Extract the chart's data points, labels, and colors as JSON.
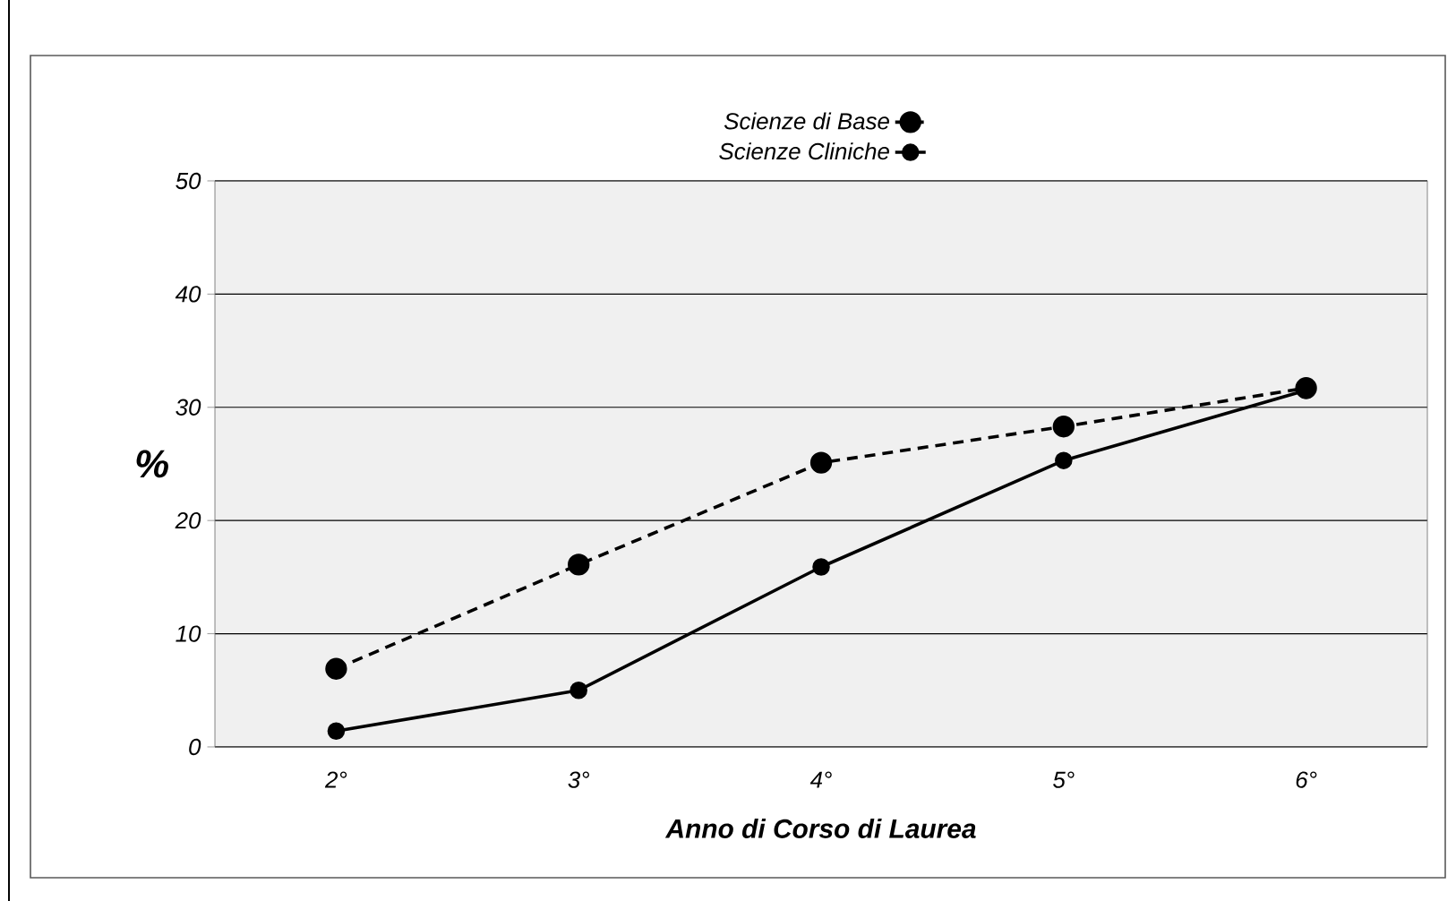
{
  "chart_data": {
    "type": "line",
    "xlabel": "Anno di Corso di Laurea",
    "ylabel": "%",
    "categories": [
      "2°",
      "3°",
      "4°",
      "5°",
      "6°"
    ],
    "series": [
      {
        "name": "Scienze di Base",
        "color": "#000000",
        "line_style": "dashed",
        "values": [
          6.9,
          16.1,
          25.1,
          28.3,
          31.7
        ]
      },
      {
        "name": "Scienze Cliniche",
        "color": "#000000",
        "line_style": "solid",
        "values": [
          1.4,
          5.0,
          15.9,
          25.3,
          31.5
        ]
      }
    ],
    "ylim": [
      0,
      50
    ],
    "yticks": [
      0,
      10,
      20,
      30,
      40,
      50
    ],
    "grid": "y",
    "legend": "top",
    "marker": "circle"
  }
}
